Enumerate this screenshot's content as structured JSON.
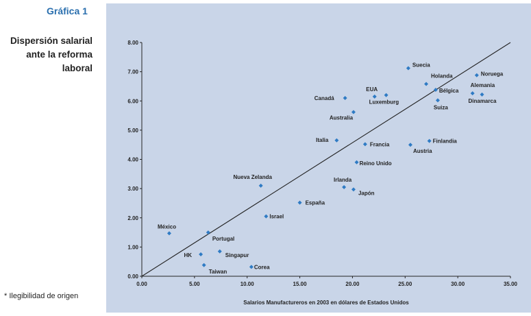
{
  "header": {
    "figure_label": "Gráfica 1",
    "caption_lines": [
      "Dispersión salarial",
      "ante la reforma",
      "laboral"
    ]
  },
  "footnote": "* Ilegibilidad de origen",
  "colors": {
    "panel_background": "#c9d5e8",
    "marker": "#2f7bc4",
    "title_accent": "#2a6fae"
  },
  "chart_data": {
    "type": "scatter",
    "xlabel": "Salarios Manufactureros en 2003 en dólares de Estados Unidos",
    "ylabel": "",
    "xlim": [
      0,
      35
    ],
    "ylim": [
      0,
      8
    ],
    "x_ticks": [
      "0.00",
      "5.00",
      "10.00",
      "15.00",
      "20.00",
      "25.00",
      "30.00",
      "35.00"
    ],
    "y_ticks": [
      "0.00",
      "1.00",
      "2.00",
      "3.00",
      "4.00",
      "5.00",
      "6.00",
      "7.00",
      "8.00"
    ],
    "grid": false,
    "reference_line": {
      "from": [
        0,
        0
      ],
      "to": [
        35,
        8
      ]
    },
    "points": [
      {
        "label": "México",
        "x": 2.6,
        "y": 1.47
      },
      {
        "label": "Portugal",
        "x": 6.3,
        "y": 1.5
      },
      {
        "label": "HK",
        "x": 5.6,
        "y": 0.75
      },
      {
        "label": "Singapur",
        "x": 7.4,
        "y": 0.85
      },
      {
        "label": "Taiwan",
        "x": 5.9,
        "y": 0.38
      },
      {
        "label": "Corea",
        "x": 10.4,
        "y": 0.32
      },
      {
        "label": "Nueva Zelanda",
        "x": 11.3,
        "y": 3.1
      },
      {
        "label": "Israel",
        "x": 11.8,
        "y": 2.05
      },
      {
        "label": "España",
        "x": 15.0,
        "y": 2.52
      },
      {
        "label": "Italia",
        "x": 18.5,
        "y": 4.65
      },
      {
        "label": "Irlanda",
        "x": 19.2,
        "y": 3.05
      },
      {
        "label": "Japón",
        "x": 20.1,
        "y": 2.97
      },
      {
        "label": "Reino Unido",
        "x": 20.4,
        "y": 3.9
      },
      {
        "label": "Francia",
        "x": 21.2,
        "y": 4.52
      },
      {
        "label": "Canadá",
        "x": 19.3,
        "y": 6.1
      },
      {
        "label": "Australia",
        "x": 20.1,
        "y": 5.62
      },
      {
        "label": "EUA",
        "x": 22.1,
        "y": 6.15
      },
      {
        "label": "Luxemburg",
        "x": 23.2,
        "y": 6.2
      },
      {
        "label": "Suecia",
        "x": 25.3,
        "y": 7.12
      },
      {
        "label": "Holanda",
        "x": 27.0,
        "y": 6.58
      },
      {
        "label": "Bélgica",
        "x": 27.9,
        "y": 6.38
      },
      {
        "label": "Suiza",
        "x": 28.1,
        "y": 6.02
      },
      {
        "label": "Austria",
        "x": 25.5,
        "y": 4.5
      },
      {
        "label": "Finlandia",
        "x": 27.3,
        "y": 4.63
      },
      {
        "label": "Noruega",
        "x": 31.8,
        "y": 6.88
      },
      {
        "label": "Alemania",
        "x": 31.4,
        "y": 6.26
      },
      {
        "label": "Dinamarca",
        "x": 32.3,
        "y": 6.22
      }
    ]
  }
}
